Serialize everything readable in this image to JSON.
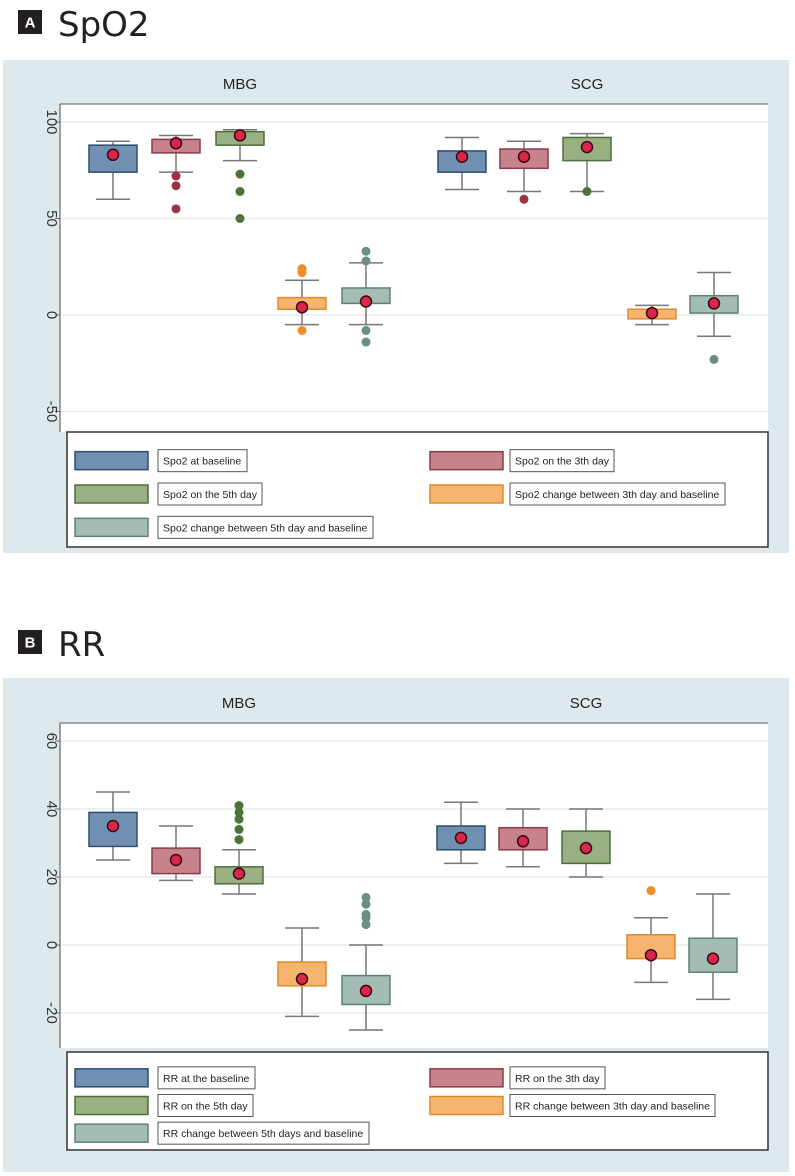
{
  "chart_data": [
    {
      "panel_letter": "A",
      "title": "SpO2",
      "type": "boxplot",
      "groups": [
        "MBG",
        "SCG"
      ],
      "ylim": [
        -62,
        109
      ],
      "yticks": [
        100,
        50,
        0,
        -50
      ],
      "grid": true,
      "legend_position": "bottom",
      "series": [
        {
          "name": "Spo2 at baseline",
          "color": "#6f90b0",
          "edge": "#2e4d6e",
          "outlier_color": "#3f6080"
        },
        {
          "name": "Spo2 on the 3th day",
          "color": "#c7838b",
          "edge": "#8b3a48",
          "outlier_color": "#9a3444"
        },
        {
          "name": "Spo2 on the 5th day",
          "color": "#99b082",
          "edge": "#4f6e3c",
          "outlier_color": "#4b7436"
        },
        {
          "name": "Spo2 change between 3th day and baseline",
          "color": "#f6b56f",
          "edge": "#e08a2a",
          "outlier_color": "#ee8e28"
        },
        {
          "name": "Spo2 change between 5th day and baseline",
          "color": "#a3bdb5",
          "edge": "#5f8078",
          "outlier_color": "#6d8e87"
        }
      ],
      "boxes": {
        "MBG": [
          {
            "whisker_low": 60,
            "q1": 74,
            "q3": 88,
            "whisker_high": 90,
            "mean": 83,
            "outliers": []
          },
          {
            "whisker_low": 74,
            "q1": 84,
            "q3": 91,
            "whisker_high": 93,
            "mean": 89,
            "outliers": [
              72,
              67,
              55
            ]
          },
          {
            "whisker_low": 80,
            "q1": 88,
            "q3": 95,
            "whisker_high": 96,
            "mean": 93,
            "outliers": [
              73,
              64,
              50
            ]
          },
          {
            "whisker_low": -5,
            "q1": 3,
            "q3": 9,
            "whisker_high": 18,
            "mean": 4,
            "outliers": [
              24,
              22,
              -8
            ]
          },
          {
            "whisker_low": -5,
            "q1": 6,
            "q3": 14,
            "whisker_high": 27,
            "mean": 7,
            "outliers": [
              33,
              28,
              -8,
              -14
            ]
          }
        ],
        "SCG": [
          {
            "whisker_low": 65,
            "q1": 74,
            "q3": 85,
            "whisker_high": 92,
            "mean": 82,
            "outliers": []
          },
          {
            "whisker_low": 64,
            "q1": 76,
            "q3": 86,
            "whisker_high": 90,
            "mean": 82,
            "outliers": [
              60
            ]
          },
          {
            "whisker_low": 64,
            "q1": 80,
            "q3": 92,
            "whisker_high": 94,
            "mean": 87,
            "outliers": [
              64
            ]
          },
          {
            "whisker_low": -5,
            "q1": -2,
            "q3": 3,
            "whisker_high": 5,
            "mean": 1,
            "outliers": []
          },
          {
            "whisker_low": -11,
            "q1": 1,
            "q3": 10,
            "whisker_high": 22,
            "mean": 6,
            "outliers": [
              -23
            ]
          }
        ]
      }
    },
    {
      "panel_letter": "B",
      "title": "RR",
      "type": "boxplot",
      "groups": [
        "MBG",
        "SCG"
      ],
      "ylim": [
        -30,
        65
      ],
      "yticks": [
        60,
        40,
        20,
        0,
        -20
      ],
      "grid": true,
      "legend_position": "bottom",
      "series": [
        {
          "name": "RR at the baseline",
          "color": "#6f90b0",
          "edge": "#2e4d6e",
          "outlier_color": "#3f6080"
        },
        {
          "name": "RR on the 3th day",
          "color": "#c7838b",
          "edge": "#8b3a48",
          "outlier_color": "#9a3444"
        },
        {
          "name": "RR on the 5th day",
          "color": "#99b082",
          "edge": "#4f6e3c",
          "outlier_color": "#4b7436"
        },
        {
          "name": "RR change between 3th day and baseline",
          "color": "#f6b56f",
          "edge": "#e08a2a",
          "outlier_color": "#ee8e28"
        },
        {
          "name": "RR change between 5th days and baseline",
          "color": "#a3bdb5",
          "edge": "#5f8078",
          "outlier_color": "#6d8e87"
        }
      ],
      "boxes": {
        "MBG": [
          {
            "whisker_low": 25,
            "q1": 29,
            "q3": 39,
            "whisker_high": 45,
            "mean": 35,
            "outliers": []
          },
          {
            "whisker_low": 19,
            "q1": 21,
            "q3": 28.5,
            "whisker_high": 35,
            "mean": 25,
            "outliers": []
          },
          {
            "whisker_low": 15,
            "q1": 18,
            "q3": 23,
            "whisker_high": 28,
            "mean": 21,
            "outliers": [
              31,
              34,
              37,
              39,
              41
            ]
          },
          {
            "whisker_low": -21,
            "q1": -12,
            "q3": -5,
            "whisker_high": 5,
            "mean": -10,
            "outliers": []
          },
          {
            "whisker_low": -25,
            "q1": -17.5,
            "q3": -9,
            "whisker_high": 0,
            "mean": -13.5,
            "outliers": [
              6,
              8,
              9,
              12,
              14
            ]
          }
        ],
        "SCG": [
          {
            "whisker_low": 24,
            "q1": 28,
            "q3": 35,
            "whisker_high": 42,
            "mean": 31.5,
            "outliers": []
          },
          {
            "whisker_low": 23,
            "q1": 28,
            "q3": 34.5,
            "whisker_high": 40,
            "mean": 30.5,
            "outliers": []
          },
          {
            "whisker_low": 20,
            "q1": 24,
            "q3": 33.5,
            "whisker_high": 40,
            "mean": 28.5,
            "outliers": []
          },
          {
            "whisker_low": -11,
            "q1": -4,
            "q3": 3,
            "whisker_high": 8,
            "mean": -3,
            "outliers": [
              16
            ]
          },
          {
            "whisker_low": -16,
            "q1": -8,
            "q3": 2,
            "whisker_high": 15,
            "mean": -4,
            "outliers": []
          }
        ]
      }
    }
  ]
}
